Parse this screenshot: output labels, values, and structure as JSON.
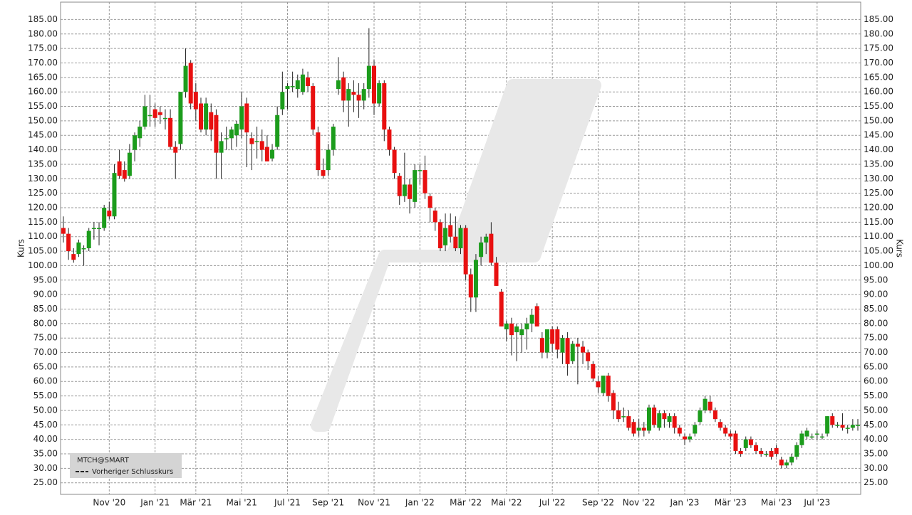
{
  "chart_data": {
    "type": "candlestick",
    "y_label": "Kurs",
    "y2_label": "Kurs",
    "legend": {
      "symbol": "MTCH@SMART",
      "line": "Vorheriger Schlusskurs"
    },
    "up_color": "#1c9c1c",
    "down_color": "#e81010",
    "grid": true,
    "ylim": [
      21,
      191
    ],
    "yticks": [
      {
        "value": 25,
        "label": "25.00"
      },
      {
        "value": 30,
        "label": "30.00"
      },
      {
        "value": 35,
        "label": "35.00"
      },
      {
        "value": 40,
        "label": "40.00"
      },
      {
        "value": 45,
        "label": "45.00"
      },
      {
        "value": 50,
        "label": "50.00"
      },
      {
        "value": 55,
        "label": "55.00"
      },
      {
        "value": 60,
        "label": "60.00"
      },
      {
        "value": 65,
        "label": "65.00"
      },
      {
        "value": 70,
        "label": "70.00"
      },
      {
        "value": 75,
        "label": "75.00"
      },
      {
        "value": 80,
        "label": "80.00"
      },
      {
        "value": 85,
        "label": "85.00"
      },
      {
        "value": 90,
        "label": "90.00"
      },
      {
        "value": 95,
        "label": "95.00"
      },
      {
        "value": 100,
        "label": "100.00"
      },
      {
        "value": 105,
        "label": "105.00"
      },
      {
        "value": 110,
        "label": "110.00"
      },
      {
        "value": 115,
        "label": "115.00"
      },
      {
        "value": 120,
        "label": "120.00"
      },
      {
        "value": 125,
        "label": "125.00"
      },
      {
        "value": 130,
        "label": "130.00"
      },
      {
        "value": 135,
        "label": "135.00"
      },
      {
        "value": 140,
        "label": "140.00"
      },
      {
        "value": 145,
        "label": "145.00"
      },
      {
        "value": 150,
        "label": "150.00"
      },
      {
        "value": 155,
        "label": "155.00"
      },
      {
        "value": 160,
        "label": "160.00"
      },
      {
        "value": 165,
        "label": "165.00"
      },
      {
        "value": 170,
        "label": "170.00"
      },
      {
        "value": 175,
        "label": "175.00"
      },
      {
        "value": 180,
        "label": "180.00"
      },
      {
        "value": 185,
        "label": "185.00"
      }
    ],
    "categories": [
      null,
      null,
      null,
      null,
      null,
      null,
      null,
      null,
      null,
      "Nov '20",
      null,
      null,
      null,
      null,
      null,
      null,
      null,
      null,
      "Jan '21",
      null,
      null,
      null,
      null,
      null,
      null,
      null,
      "Mär '21",
      null,
      null,
      null,
      null,
      null,
      null,
      null,
      null,
      "Mai '21",
      null,
      null,
      null,
      null,
      null,
      null,
      null,
      null,
      "Jul '21",
      null,
      null,
      null,
      null,
      null,
      null,
      null,
      "Sep '21",
      null,
      null,
      null,
      null,
      null,
      null,
      null,
      null,
      "Nov '21",
      null,
      null,
      null,
      null,
      null,
      null,
      null,
      null,
      "Jan '22",
      null,
      null,
      null,
      null,
      null,
      null,
      null,
      null,
      "Mär '22",
      null,
      null,
      null,
      null,
      null,
      null,
      null,
      "Mai '22",
      null,
      null,
      null,
      null,
      null,
      null,
      null,
      null,
      "Jul '22",
      null,
      null,
      null,
      null,
      null,
      null,
      null,
      null,
      "Sep '22",
      null,
      null,
      null,
      null,
      null,
      null,
      null,
      "Nov '22",
      null,
      null,
      null,
      null,
      null,
      null,
      null,
      null,
      "Jan '23",
      null,
      null,
      null,
      null,
      null,
      null,
      null,
      null,
      "Mär '23",
      null,
      null,
      null,
      null,
      null,
      null,
      null,
      null,
      "Mai '23",
      null,
      null,
      null,
      null,
      null,
      null,
      null,
      "Jul '23",
      null,
      null,
      null,
      null,
      null,
      null,
      null,
      null
    ],
    "ohlc": [
      [
        113,
        117,
        108,
        111
      ],
      [
        111,
        113,
        102,
        105
      ],
      [
        104,
        106,
        101,
        102
      ],
      [
        104,
        109,
        103,
        108
      ],
      [
        106,
        107,
        100,
        106
      ],
      [
        106,
        113,
        105,
        112
      ],
      [
        113,
        115,
        109,
        113
      ],
      [
        113,
        115,
        107,
        113
      ],
      [
        113,
        121,
        112,
        120
      ],
      [
        119,
        122,
        116,
        117
      ],
      [
        117,
        135,
        116,
        132
      ],
      [
        136,
        140,
        130,
        131
      ],
      [
        133,
        136,
        129,
        130
      ],
      [
        131,
        142,
        130,
        139
      ],
      [
        140,
        146,
        136,
        145
      ],
      [
        144,
        150,
        141,
        148
      ],
      [
        148,
        159,
        147,
        155
      ],
      [
        152,
        159,
        148,
        152
      ],
      [
        154,
        156,
        148,
        151
      ],
      [
        153,
        155,
        149,
        152
      ],
      [
        151,
        154,
        147,
        151
      ],
      [
        151,
        154,
        140,
        141
      ],
      [
        141,
        143,
        130,
        139
      ],
      [
        142,
        160,
        140,
        160
      ],
      [
        160,
        175,
        158,
        169
      ],
      [
        170,
        171,
        154,
        156
      ],
      [
        160,
        163,
        150,
        154
      ],
      [
        156,
        158,
        146,
        147
      ],
      [
        147,
        158,
        145,
        156
      ],
      [
        153,
        156,
        143,
        147
      ],
      [
        152,
        154,
        130,
        139
      ],
      [
        139,
        146,
        130,
        143
      ],
      [
        144,
        148,
        140,
        144
      ],
      [
        144,
        148,
        140,
        147
      ],
      [
        145,
        150,
        141,
        149
      ],
      [
        147,
        160,
        144,
        155
      ],
      [
        156,
        158,
        134,
        146
      ],
      [
        144,
        146,
        133,
        142
      ],
      [
        143,
        148,
        137,
        143
      ],
      [
        143,
        147,
        136,
        140
      ],
      [
        141,
        145,
        136,
        136
      ],
      [
        137,
        142,
        136,
        140
      ],
      [
        141,
        155,
        140,
        152
      ],
      [
        154,
        167,
        152,
        160
      ],
      [
        161,
        163,
        154,
        162
      ],
      [
        162,
        167,
        160,
        162
      ],
      [
        161,
        166,
        158,
        164
      ],
      [
        160,
        168,
        159,
        166
      ],
      [
        165,
        167,
        160,
        162
      ],
      [
        162,
        163,
        145,
        147
      ],
      [
        146,
        148,
        131,
        133
      ],
      [
        133,
        137,
        130,
        131
      ],
      [
        133,
        142,
        131,
        140
      ],
      [
        140,
        149,
        138,
        148
      ],
      [
        161,
        172,
        159,
        164
      ],
      [
        165,
        167,
        153,
        157
      ],
      [
        157,
        163,
        148,
        161
      ],
      [
        160,
        164,
        153,
        159
      ],
      [
        159,
        163,
        151,
        157
      ],
      [
        157,
        163,
        154,
        161
      ],
      [
        161,
        182,
        158,
        169
      ],
      [
        169,
        171,
        152,
        156
      ],
      [
        156,
        164,
        155,
        163
      ],
      [
        163,
        164,
        143,
        147
      ],
      [
        147,
        148,
        138,
        140
      ],
      [
        140,
        141,
        130,
        132
      ],
      [
        131,
        132,
        121,
        124
      ],
      [
        124,
        139,
        122,
        128
      ],
      [
        128,
        130,
        118,
        123
      ],
      [
        122,
        135,
        120,
        133
      ],
      [
        133,
        135,
        128,
        133
      ],
      [
        133,
        138,
        123,
        125
      ],
      [
        124,
        125,
        115,
        120
      ],
      [
        119,
        120,
        112,
        115
      ],
      [
        115,
        116,
        105,
        106
      ],
      [
        107,
        118,
        105,
        113
      ],
      [
        114,
        118,
        108,
        110
      ],
      [
        110,
        117,
        105,
        106
      ],
      [
        106,
        114,
        104,
        113
      ],
      [
        113,
        114,
        95,
        97
      ],
      [
        97,
        99,
        84,
        89
      ],
      [
        89,
        104,
        84,
        102
      ],
      [
        103,
        110,
        100,
        108
      ],
      [
        108,
        111,
        104,
        110
      ],
      [
        111,
        115,
        100,
        101
      ],
      [
        101,
        103,
        93,
        93
      ],
      [
        91,
        92,
        79,
        79
      ],
      [
        78,
        81,
        74,
        80
      ],
      [
        80,
        82,
        69,
        76
      ],
      [
        77,
        80,
        67,
        79
      ],
      [
        76,
        80,
        70,
        78
      ],
      [
        78,
        82,
        71,
        80
      ],
      [
        80,
        85,
        77,
        83
      ],
      [
        86,
        87,
        79,
        79
      ],
      [
        75,
        77,
        68,
        70
      ],
      [
        70,
        78,
        68,
        78
      ],
      [
        78,
        79,
        70,
        73
      ],
      [
        78,
        79,
        68,
        71
      ],
      [
        70,
        76,
        66,
        75
      ],
      [
        75,
        77,
        62,
        66
      ],
      [
        67,
        74,
        66,
        73
      ],
      [
        73,
        75,
        59,
        72
      ],
      [
        72,
        74,
        66,
        70
      ],
      [
        70,
        71,
        64,
        67
      ],
      [
        66,
        67,
        60,
        61
      ],
      [
        60,
        62,
        56,
        58
      ],
      [
        56,
        62,
        55,
        62
      ],
      [
        62,
        63,
        53,
        55
      ],
      [
        56,
        57,
        47,
        50
      ],
      [
        50,
        53,
        46,
        47
      ],
      [
        48,
        51,
        46,
        48
      ],
      [
        48,
        50,
        43,
        44
      ],
      [
        46,
        47,
        41,
        42
      ],
      [
        43,
        47,
        41,
        44
      ],
      [
        44,
        46,
        41,
        43
      ],
      [
        43,
        52,
        42,
        51
      ],
      [
        51,
        52,
        44,
        45
      ],
      [
        44,
        50,
        43,
        49
      ],
      [
        49,
        50,
        44,
        47
      ],
      [
        46,
        49,
        44,
        48
      ],
      [
        48,
        49,
        42,
        44
      ],
      [
        44,
        45,
        41,
        42
      ],
      [
        41,
        42,
        38,
        40
      ],
      [
        40,
        42,
        39,
        41
      ],
      [
        42,
        46,
        41,
        45
      ],
      [
        46,
        51,
        45,
        50
      ],
      [
        50,
        55,
        49,
        54
      ],
      [
        53,
        55,
        49,
        50
      ],
      [
        50,
        51,
        46,
        47
      ],
      [
        46,
        47,
        43,
        44
      ],
      [
        44,
        45,
        41,
        42
      ],
      [
        42,
        43,
        40,
        41
      ],
      [
        42,
        43,
        35,
        36
      ],
      [
        36,
        37,
        34,
        35
      ],
      [
        37,
        41,
        36,
        40
      ],
      [
        40,
        41,
        37,
        38
      ],
      [
        38,
        39,
        35,
        36
      ],
      [
        36,
        37,
        34,
        35
      ],
      [
        35,
        36,
        34,
        35
      ],
      [
        36,
        37,
        33,
        34
      ],
      [
        37,
        38,
        34,
        35
      ],
      [
        33,
        34,
        30,
        31
      ],
      [
        31,
        33,
        30,
        32
      ],
      [
        32,
        35,
        31,
        34
      ],
      [
        34,
        39,
        33,
        38
      ],
      [
        38,
        43,
        37,
        42
      ],
      [
        41,
        44,
        40,
        43
      ],
      [
        41,
        42,
        40,
        41
      ],
      [
        42,
        43,
        40,
        42
      ],
      [
        41,
        42,
        40,
        41
      ],
      [
        42,
        48,
        41,
        48
      ],
      [
        48,
        49,
        44,
        45
      ],
      [
        45,
        46,
        44,
        45
      ],
      [
        45,
        49,
        43,
        44
      ],
      [
        44,
        45,
        42,
        44
      ],
      [
        44,
        47,
        43,
        45
      ],
      [
        45,
        47,
        43,
        45
      ]
    ]
  }
}
